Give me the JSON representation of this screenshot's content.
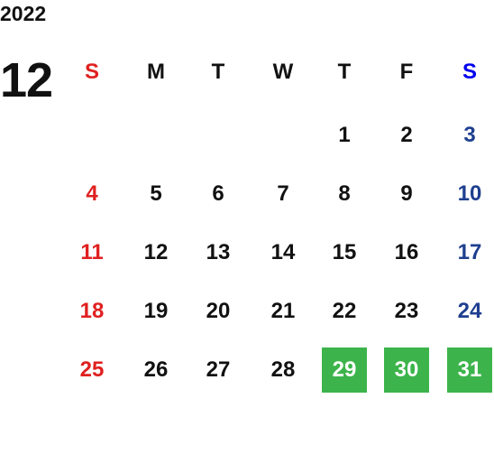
{
  "year": "2022",
  "month": "12",
  "weekdays": [
    "S",
    "M",
    "T",
    "W",
    "T",
    "F",
    "S"
  ],
  "weeks": [
    [
      null,
      null,
      null,
      null,
      {
        "day": "1"
      },
      {
        "day": "2"
      },
      {
        "day": "3"
      }
    ],
    [
      {
        "day": "4"
      },
      {
        "day": "5"
      },
      {
        "day": "6"
      },
      {
        "day": "7"
      },
      {
        "day": "8"
      },
      {
        "day": "9"
      },
      {
        "day": "10"
      }
    ],
    [
      {
        "day": "11"
      },
      {
        "day": "12"
      },
      {
        "day": "13"
      },
      {
        "day": "14"
      },
      {
        "day": "15"
      },
      {
        "day": "16"
      },
      {
        "day": "17"
      }
    ],
    [
      {
        "day": "18"
      },
      {
        "day": "19"
      },
      {
        "day": "20"
      },
      {
        "day": "21"
      },
      {
        "day": "22"
      },
      {
        "day": "23"
      },
      {
        "day": "24"
      }
    ],
    [
      {
        "day": "25"
      },
      {
        "day": "26"
      },
      {
        "day": "27"
      },
      {
        "day": "28"
      },
      {
        "day": "29",
        "highlight": true
      },
      {
        "day": "30",
        "highlight": true
      },
      {
        "day": "31",
        "highlight": true
      }
    ]
  ]
}
